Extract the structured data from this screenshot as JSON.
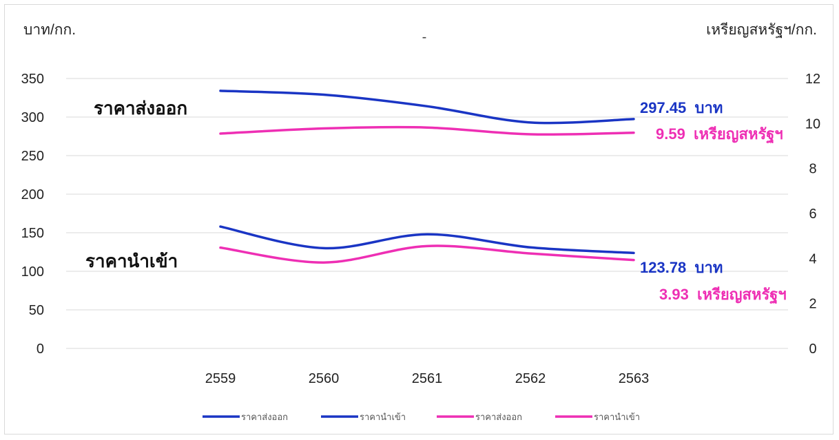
{
  "chart_data": {
    "type": "line",
    "title": "-",
    "categories": [
      "2559",
      "2560",
      "2561",
      "2562",
      "2563"
    ],
    "y_left": {
      "label": "บาท/กก.",
      "ylim": [
        0,
        350
      ],
      "ticks": [
        "0",
        "50",
        "100",
        "150",
        "200",
        "250",
        "300",
        "350"
      ]
    },
    "y_right": {
      "label": "เหรียญสหรัฐฯ/กก.",
      "ylim": [
        0,
        12
      ],
      "ticks": [
        "0",
        "2",
        "4",
        "6",
        "8",
        "10",
        "12"
      ]
    },
    "grid": true,
    "legend_position": "bottom",
    "series": [
      {
        "name": "ราคาส่งออก",
        "axis": "left",
        "color": "#1a35c4",
        "values": [
          334,
          329,
          314,
          293,
          297.45
        ]
      },
      {
        "name": "ราคานำเข้า",
        "axis": "left",
        "color": "#1a35c4",
        "values": [
          158,
          130,
          148,
          131,
          123.78
        ]
      },
      {
        "name": "ราคาส่งออก",
        "axis": "right",
        "color": "#ee2fb4",
        "values": [
          9.55,
          9.78,
          9.82,
          9.52,
          9.59
        ]
      },
      {
        "name": "ราคานำเข้า",
        "axis": "right",
        "color": "#ee2fb4",
        "values": [
          4.48,
          3.82,
          4.55,
          4.22,
          3.93
        ]
      }
    ],
    "annotations": {
      "export_label": "ราคาส่งออก",
      "import_label": "ราคานำเข้า",
      "export_baht": "297.45  บาท",
      "export_usd": "9.59  เหรียญสหรัฐฯ",
      "import_baht": "123.78  บาท",
      "import_usd": "3.93  เหรียญสหรัฐฯ"
    }
  }
}
